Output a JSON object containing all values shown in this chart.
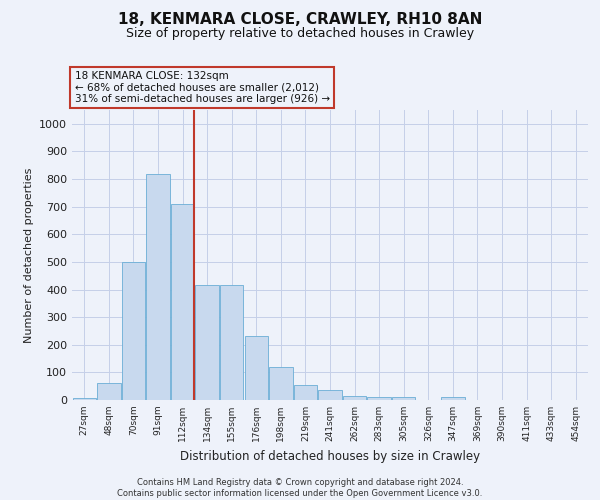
{
  "title": "18, KENMARA CLOSE, CRAWLEY, RH10 8AN",
  "subtitle": "Size of property relative to detached houses in Crawley",
  "xlabel": "Distribution of detached houses by size in Crawley",
  "ylabel": "Number of detached properties",
  "categories": [
    "27sqm",
    "48sqm",
    "70sqm",
    "91sqm",
    "112sqm",
    "134sqm",
    "155sqm",
    "176sqm",
    "198sqm",
    "219sqm",
    "241sqm",
    "262sqm",
    "283sqm",
    "305sqm",
    "326sqm",
    "347sqm",
    "369sqm",
    "390sqm",
    "411sqm",
    "433sqm",
    "454sqm"
  ],
  "values": [
    8,
    60,
    500,
    820,
    710,
    415,
    415,
    230,
    120,
    55,
    35,
    15,
    10,
    10,
    0,
    10,
    0,
    0,
    0,
    0,
    0
  ],
  "bar_color": "#c8d9ee",
  "bar_edge_color": "#6aaed6",
  "vline_pos": 4.48,
  "vline_color": "#c0392b",
  "annotation_lines": [
    "18 KENMARA CLOSE: 132sqm",
    "← 68% of detached houses are smaller (2,012)",
    "31% of semi-detached houses are larger (926) →"
  ],
  "annotation_box_edgecolor": "#c0392b",
  "ylim": [
    0,
    1050
  ],
  "yticks": [
    0,
    100,
    200,
    300,
    400,
    500,
    600,
    700,
    800,
    900,
    1000
  ],
  "footer_line1": "Contains HM Land Registry data © Crown copyright and database right 2024.",
  "footer_line2": "Contains public sector information licensed under the Open Government Licence v3.0.",
  "bg_color": "#eef2fa",
  "grid_color": "#c5cfe8"
}
